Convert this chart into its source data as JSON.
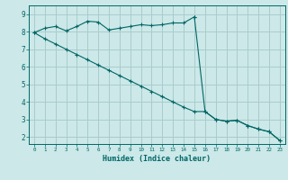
{
  "xlabel": "Humidex (Indice chaleur)",
  "bg_color": "#cce8e8",
  "grid_color": "#aacccc",
  "line_color": "#006666",
  "x_ticks": [
    0,
    1,
    2,
    3,
    4,
    5,
    6,
    7,
    8,
    9,
    10,
    11,
    12,
    13,
    14,
    15,
    16,
    17,
    18,
    19,
    20,
    21,
    22,
    23
  ],
  "y_ticks": [
    2,
    3,
    4,
    5,
    6,
    7,
    8,
    9
  ],
  "xlim": [
    -0.5,
    23.5
  ],
  "ylim": [
    1.6,
    9.5
  ],
  "line1_x": [
    0,
    1,
    2,
    3,
    4,
    5,
    6,
    7,
    8,
    9,
    10,
    11,
    12,
    13,
    14,
    15,
    15,
    16,
    17,
    18,
    19,
    20,
    21,
    22,
    23
  ],
  "line1_y": [
    7.95,
    8.2,
    8.3,
    8.05,
    8.3,
    8.6,
    8.55,
    8.1,
    8.2,
    8.3,
    8.4,
    8.35,
    8.4,
    8.5,
    8.5,
    8.85,
    8.85,
    3.45,
    3.0,
    2.9,
    2.95,
    2.65,
    2.45,
    2.3,
    1.8
  ],
  "line2_x": [
    0,
    1,
    2,
    3,
    4,
    5,
    6,
    7,
    8,
    9,
    10,
    11,
    12,
    13,
    14,
    15,
    16,
    17,
    18,
    19,
    20,
    21,
    22,
    23
  ],
  "line2_y": [
    7.95,
    7.6,
    7.3,
    7.0,
    6.7,
    6.4,
    6.1,
    5.8,
    5.5,
    5.2,
    4.9,
    4.6,
    4.3,
    4.0,
    3.7,
    3.45,
    3.45,
    3.0,
    2.9,
    2.95,
    2.65,
    2.45,
    2.3,
    1.8
  ]
}
